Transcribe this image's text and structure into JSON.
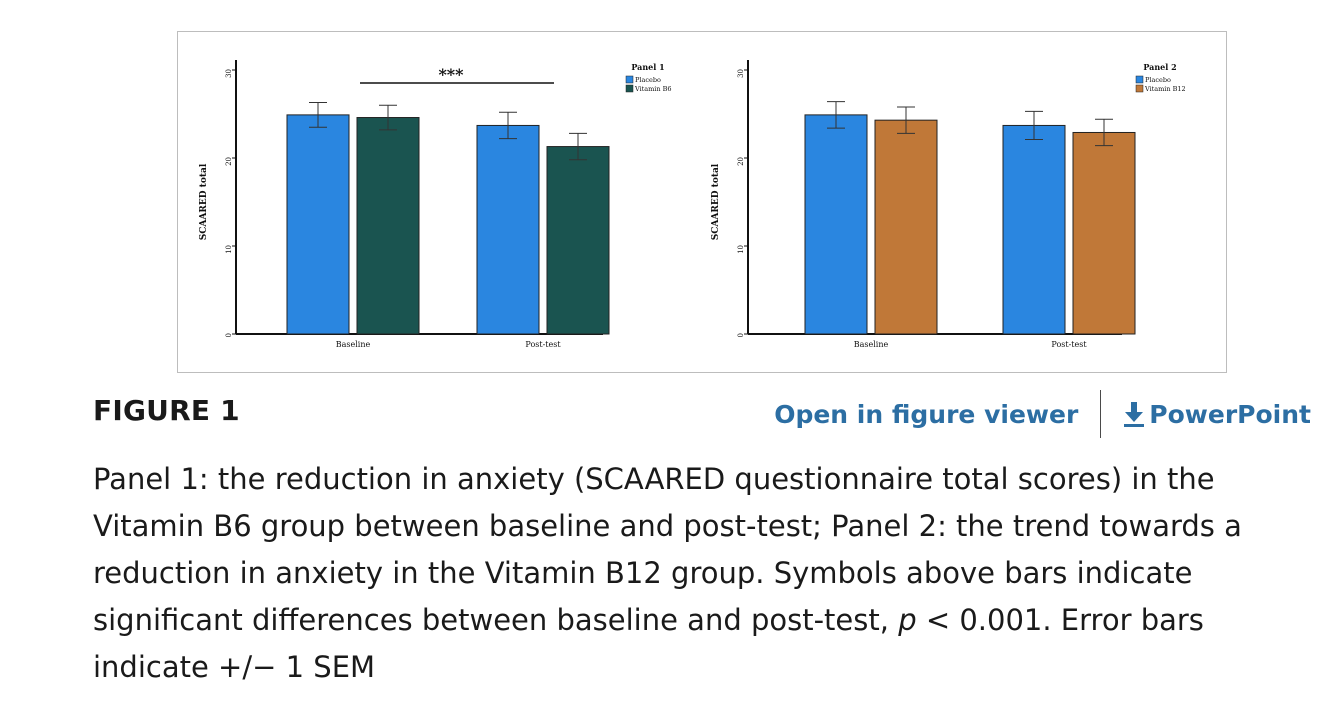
{
  "figure": {
    "label": "FIGURE 1",
    "actions": {
      "open_viewer": "Open in figure viewer",
      "powerpoint": "PowerPoint"
    },
    "caption": {
      "part1": "Panel 1: the reduction in anxiety (SCAARED questionnaire total scores) in the Vitamin B6 group between baseline and post-test; Panel 2: the trend towards a reduction in anxiety in the Vitamin B12 group. Symbols above bars indicate significant differences between baseline and post-test, ",
      "p_symbol": "p",
      "part2": " < 0.001. Error bars indicate +/− 1 SEM"
    }
  },
  "colors": {
    "placebo": "#2a86e0",
    "vitamin_b6": "#1a5450",
    "vitamin_b12": "#c07838",
    "link": "#2c6ea3"
  },
  "chart_data": [
    {
      "type": "bar",
      "title": "Panel 1",
      "ylabel": "SCAARED total",
      "ylim": [
        0,
        30
      ],
      "yticks": [
        0,
        10,
        20,
        30
      ],
      "categories": [
        "Baseline",
        "Post-test"
      ],
      "legend_position": "top-right",
      "series": [
        {
          "name": "Placebo",
          "values": [
            24.9,
            23.7
          ],
          "errors": [
            1.4,
            1.5
          ]
        },
        {
          "name": "Vitamin B6",
          "values": [
            24.6,
            21.3
          ],
          "errors": [
            1.4,
            1.5
          ]
        }
      ],
      "annotation": {
        "text": "***"
      }
    },
    {
      "type": "bar",
      "title": "Panel 2",
      "ylabel": "SCAARED total",
      "ylim": [
        0,
        30
      ],
      "yticks": [
        0,
        10,
        20,
        30
      ],
      "categories": [
        "Baseline",
        "Post-test"
      ],
      "legend_position": "top-right",
      "series": [
        {
          "name": "Placebo",
          "values": [
            24.9,
            23.7
          ],
          "errors": [
            1.5,
            1.6
          ]
        },
        {
          "name": "Vitamin B12",
          "values": [
            24.3,
            22.9
          ],
          "errors": [
            1.5,
            1.5
          ]
        }
      ]
    }
  ]
}
